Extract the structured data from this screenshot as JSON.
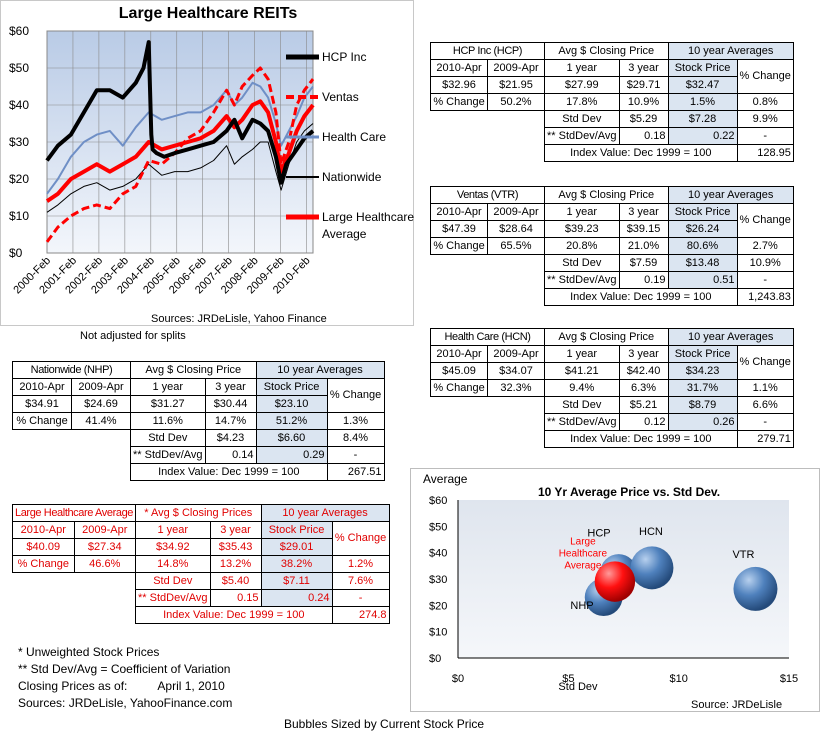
{
  "line_chart": {
    "title": "Large Healthcare REITs",
    "source": "Sources: JRDeLisle, Yahoo Finance",
    "note": "Not adjusted for splits"
  },
  "chart_data": [
    {
      "type": "line",
      "title": "Large Healthcare REITs",
      "x_ticks": [
        "2000-Feb",
        "2001-Feb",
        "2002-Feb",
        "2003-Feb",
        "2004-Feb",
        "2005-Feb",
        "2006-Feb",
        "2007-Feb",
        "2008-Feb",
        "2009-Feb",
        "2010-Feb"
      ],
      "y_ticks": [
        "$0",
        "$10",
        "$20",
        "$30",
        "$40",
        "$50",
        "$60"
      ],
      "ylim": [
        0,
        60
      ],
      "xlim": [
        2000.08,
        2010.33
      ],
      "grid": true,
      "legend_position": "right",
      "series": [
        {
          "name": "HCP Inc",
          "color": "#000000",
          "style": "solid-thick",
          "x": [
            2000.08,
            2000.5,
            2001,
            2001.5,
            2002,
            2002.5,
            2003,
            2003.5,
            2003.8,
            2004,
            2004.1,
            2004.15,
            2004.3,
            2004.6,
            2005,
            2005.5,
            2006,
            2006.5,
            2007,
            2007.3,
            2007.6,
            2008,
            2008.3,
            2008.6,
            2008.9,
            2009.1,
            2009.3,
            2009.6,
            2010,
            2010.33
          ],
          "y": [
            25,
            29,
            32,
            38,
            44,
            44,
            42,
            46,
            50,
            57,
            32,
            28,
            27,
            26,
            27,
            28,
            29,
            30,
            33,
            36,
            31,
            36,
            35,
            33,
            26,
            19,
            24,
            27,
            31,
            33
          ]
        },
        {
          "name": "Ventas",
          "color": "#ff0000",
          "style": "dashed-thick",
          "x": [
            2000.08,
            2000.5,
            2001,
            2001.5,
            2002,
            2002.5,
            2003,
            2003.5,
            2004,
            2004.5,
            2005,
            2005.5,
            2006,
            2006.5,
            2007,
            2007.3,
            2007.6,
            2008,
            2008.3,
            2008.6,
            2008.9,
            2009.1,
            2009.4,
            2009.7,
            2010,
            2010.33
          ],
          "y": [
            3,
            7,
            10,
            12,
            13,
            12,
            16,
            18,
            25,
            24,
            27,
            31,
            33,
            38,
            44,
            40,
            45,
            48,
            50,
            47,
            38,
            24,
            30,
            40,
            44,
            47
          ]
        },
        {
          "name": "Health Care",
          "color": "#6f8fc6",
          "style": "solid",
          "x": [
            2000.08,
            2000.5,
            2001,
            2001.5,
            2002,
            2002.5,
            2003,
            2003.5,
            2004,
            2004.5,
            2005,
            2005.5,
            2006,
            2006.5,
            2007,
            2007.3,
            2007.6,
            2008,
            2008.3,
            2008.6,
            2008.9,
            2009.1,
            2009.4,
            2009.7,
            2010,
            2010.33
          ],
          "y": [
            16,
            20,
            26,
            30,
            32,
            33,
            29,
            34,
            38,
            36,
            37,
            38,
            38,
            40,
            44,
            40,
            42,
            46,
            45,
            42,
            35,
            29,
            33,
            37,
            42,
            45
          ]
        },
        {
          "name": "Nationwide",
          "color": "#000000",
          "style": "solid-thin",
          "x": [
            2000.08,
            2000.5,
            2001,
            2001.5,
            2002,
            2002.5,
            2003,
            2003.5,
            2004,
            2004.5,
            2005,
            2005.5,
            2006,
            2006.5,
            2007,
            2007.3,
            2007.6,
            2008,
            2008.3,
            2008.6,
            2008.9,
            2009.1,
            2009.4,
            2009.7,
            2010,
            2010.33
          ],
          "y": [
            11,
            13,
            16,
            18,
            19,
            17,
            18,
            20,
            24,
            21,
            22,
            22,
            23,
            25,
            29,
            24,
            26,
            28,
            30,
            30,
            22,
            17,
            24,
            30,
            33,
            35
          ]
        },
        {
          "name": "Large Healthcare Average",
          "color": "#ff0000",
          "style": "solid-thick",
          "x": [
            2000.08,
            2000.5,
            2001,
            2001.5,
            2002,
            2002.5,
            2003,
            2003.5,
            2004,
            2004.5,
            2005,
            2005.5,
            2006,
            2006.5,
            2007,
            2007.3,
            2007.6,
            2008,
            2008.3,
            2008.6,
            2008.9,
            2009.1,
            2009.4,
            2009.7,
            2010,
            2010.33
          ],
          "y": [
            14,
            16,
            20,
            22,
            24,
            22,
            24,
            26,
            30,
            28,
            29,
            30,
            31,
            33,
            37,
            34,
            36,
            40,
            41,
            38,
            30,
            22,
            27,
            33,
            37,
            40
          ]
        }
      ]
    },
    {
      "type": "scatter",
      "title": "10 Yr Average Price vs. Std Dev.",
      "ylabel": "Average",
      "xlabel": "Std Dev",
      "x_ticks": [
        "$0",
        "$5",
        "$10",
        "$15"
      ],
      "y_ticks": [
        "$0",
        "$10",
        "$20",
        "$30",
        "$40",
        "$50",
        "$60"
      ],
      "xlim": [
        0,
        15
      ],
      "ylim": [
        0,
        60
      ],
      "source": "Source: JRDeLisle",
      "caption": "Bubbles Sized by Current Stock Price",
      "points": [
        {
          "label": "HCP",
          "x": 7.28,
          "y": 32.47,
          "size": 32.96,
          "color": "#4f81bd"
        },
        {
          "label": "HCN",
          "x": 8.79,
          "y": 34.23,
          "size": 45.09,
          "color": "#4f81bd"
        },
        {
          "label": "VTR",
          "x": 13.48,
          "y": 26.24,
          "size": 47.39,
          "color": "#4f81bd"
        },
        {
          "label": "NHP",
          "x": 6.6,
          "y": 23.1,
          "size": 34.91,
          "color": "#4f81bd"
        },
        {
          "label": "Large Healthcare Average",
          "x": 7.11,
          "y": 29.01,
          "size": 40.09,
          "color": "#ff0000"
        }
      ]
    }
  ],
  "tables": {
    "hcp": {
      "name": "HCP Inc (HCP)",
      "avg_hdr": "Avg $ Closing Price",
      "yr10_hdr": "10 year Averages",
      "c1": "2010-Apr",
      "c2": "2009-Apr",
      "c3": "1 year",
      "c4": "3 year",
      "c5": "Stock Price",
      "c6": "% Change",
      "p1": "$32.96",
      "p2": "$21.95",
      "p3": "$27.99",
      "p4": "$29.71",
      "p5": "$32.47",
      "p6": "0.8%",
      "pc_lbl": "% Change",
      "q2": "50.2%",
      "q3": "17.8%",
      "q4": "10.9%",
      "q5": "1.5%",
      "q6": "9.9%",
      "sd_lbl": "Std Dev",
      "s4": "$5.29",
      "s5": "$7.28",
      "cv_lbl": "** StdDev/Avg",
      "v4": "0.18",
      "v5": "0.22",
      "v6": "-",
      "idx_lbl": "Index Value: Dec 1999 = 100",
      "idx": "128.95"
    },
    "vtr": {
      "name": "Ventas (VTR)",
      "avg_hdr": "Avg $ Closing Price",
      "yr10_hdr": "10 year Averages",
      "c1": "2010-Apr",
      "c2": "2009-Apr",
      "c3": "1 year",
      "c4": "3 year",
      "c5": "Stock Price",
      "c6": "% Change",
      "p1": "$47.39",
      "p2": "$28.64",
      "p3": "$39.23",
      "p4": "$39.15",
      "p5": "$26.24",
      "p6": "2.7%",
      "pc_lbl": "% Change",
      "q2": "65.5%",
      "q3": "20.8%",
      "q4": "21.0%",
      "q5": "80.6%",
      "q6": "10.9%",
      "sd_lbl": "Std Dev",
      "s4": "$7.59",
      "s5": "$13.48",
      "cv_lbl": "** StdDev/Avg",
      "v4": "0.19",
      "v5": "0.51",
      "v6": "-",
      "idx_lbl": "Index Value: Dec 1999 = 100",
      "idx": "1,243.83"
    },
    "hcn": {
      "name": "Health Care (HCN)",
      "avg_hdr": "Avg $ Closing Price",
      "yr10_hdr": "10 year Averages",
      "c1": "2010-Apr",
      "c2": "2009-Apr",
      "c3": "1 year",
      "c4": "3 year",
      "c5": "Stock Price",
      "c6": "% Change",
      "p1": "$45.09",
      "p2": "$34.07",
      "p3": "$41.21",
      "p4": "$42.40",
      "p5": "$34.23",
      "p6": "1.1%",
      "pc_lbl": "% Change",
      "q2": "32.3%",
      "q3": "9.4%",
      "q4": "6.3%",
      "q5": "31.7%",
      "q6": "6.6%",
      "sd_lbl": "Std Dev",
      "s4": "$5.21",
      "s5": "$8.79",
      "cv_lbl": "** StdDev/Avg",
      "v4": "0.12",
      "v5": "0.26",
      "v6": "-",
      "idx_lbl": "Index Value: Dec 1999 = 100",
      "idx": "279.71"
    },
    "nhp": {
      "name": "Nationwide (NHP)",
      "avg_hdr": "Avg $ Closing Price",
      "yr10_hdr": "10 year Averages",
      "c1": "2010-Apr",
      "c2": "2009-Apr",
      "c3": "1 year",
      "c4": "3 year",
      "c5": "Stock Price",
      "c6": "% Change",
      "p1": "$34.91",
      "p2": "$24.69",
      "p3": "$31.27",
      "p4": "$30.44",
      "p5": "$23.10",
      "p6": "1.3%",
      "pc_lbl": "% Change",
      "q2": "41.4%",
      "q3": "11.6%",
      "q4": "14.7%",
      "q5": "51.2%",
      "q6": "8.4%",
      "sd_lbl": "Std Dev",
      "s4": "$4.23",
      "s5": "$6.60",
      "cv_lbl": "** StdDev/Avg",
      "v4": "0.14",
      "v5": "0.29",
      "v6": "-",
      "idx_lbl": "Index Value: Dec 1999 = 100",
      "idx": "267.51"
    },
    "avg": {
      "name": "Large Healthcare Average",
      "avg_hdr": "* Avg $ Closing Prices",
      "yr10_hdr": "10 year Averages",
      "c1": "2010-Apr",
      "c2": "2009-Apr",
      "c3": "1 year",
      "c4": "3 year",
      "c5": "Stock Price",
      "c6": "% Change",
      "p1": "$40.09",
      "p2": "$27.34",
      "p3": "$34.92",
      "p4": "$35.43",
      "p5": "$29.01",
      "p6": "1.2%",
      "pc_lbl": "% Change",
      "q2": "46.6%",
      "q3": "14.8%",
      "q4": "13.2%",
      "q5": "38.2%",
      "q6": "7.6%",
      "sd_lbl": "Std Dev",
      "s4": "$5.40",
      "s5": "$7.11",
      "cv_lbl": "** StdDev/Avg",
      "v4": "0.15",
      "v5": "0.24",
      "v6": "-",
      "idx_lbl": "Index Value: Dec 1999 = 100",
      "idx": "274.8"
    }
  },
  "notes": {
    "n1": "* Unweighted Stock Prices",
    "n2": "** Std Dev/Avg = Coefficient of Variation",
    "n3": "Closing Prices as of:",
    "n3v": "April 1, 2010",
    "n4": "Sources: JRDeLisle, YahooFinance.com"
  }
}
